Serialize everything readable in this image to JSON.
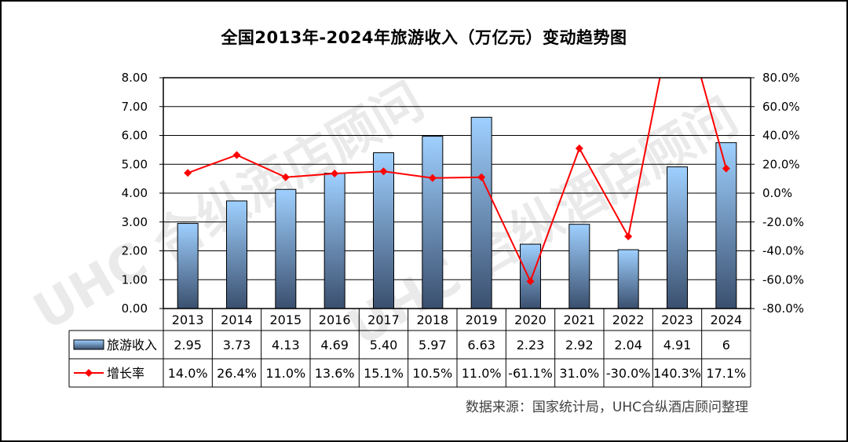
{
  "title": "全国2013年-2024年旅游收入（万亿元）变动趋势图",
  "source": "数据来源：国家统计局，UHC合纵酒店顾问整理",
  "watermark": "UHC 合纵酒店顾问",
  "colors": {
    "bar_top": "#9fd0ff",
    "bar_bottom": "#3a4f6e",
    "line": "#ff0000"
  },
  "chart_data": {
    "type": "bar+line",
    "categories": [
      "2013",
      "2014",
      "2015",
      "2016",
      "2017",
      "2018",
      "2019",
      "2020",
      "2021",
      "2022",
      "2023",
      "2024"
    ],
    "series": [
      {
        "name": "旅游收入",
        "type": "bar",
        "axis": "left",
        "values": [
          2.95,
          3.73,
          4.13,
          4.69,
          5.4,
          5.97,
          6.63,
          2.23,
          2.92,
          2.04,
          4.91,
          5.75
        ],
        "table_labels": [
          "2.95",
          "3.73",
          "4.13",
          "4.69",
          "5.40",
          "5.97",
          "6.63",
          "2.23",
          "2.92",
          "2.04",
          "4.91",
          "6"
        ]
      },
      {
        "name": "增长率",
        "type": "line",
        "axis": "right",
        "values": [
          14.0,
          26.4,
          11.0,
          13.6,
          15.1,
          10.5,
          11.0,
          -61.1,
          31.0,
          -30.0,
          140.3,
          17.1
        ],
        "table_labels": [
          "14.0%",
          "26.4%",
          "11.0%",
          "13.6%",
          "15.1%",
          "10.5%",
          "11.0%",
          "-61.1%",
          "31.0%",
          "-30.0%",
          "140.3%",
          "17.1%"
        ]
      }
    ],
    "y_left": {
      "range": [
        0,
        8
      ],
      "ticks": [
        "0.00",
        "1.00",
        "2.00",
        "3.00",
        "4.00",
        "5.00",
        "6.00",
        "7.00",
        "8.00"
      ]
    },
    "y_right": {
      "range": [
        -80,
        80
      ],
      "ticks": [
        "-80.0%",
        "-60.0%",
        "-40.0%",
        "-20.0%",
        "0.0%",
        "20.0%",
        "40.0%",
        "60.0%",
        "80.0%"
      ]
    },
    "grid": true,
    "legend": "data-table"
  }
}
